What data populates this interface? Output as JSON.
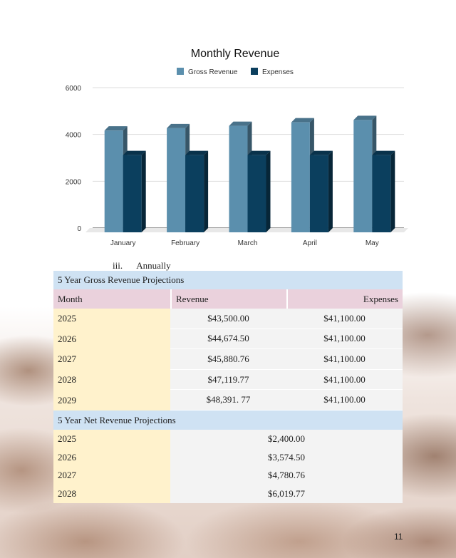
{
  "chart_data": {
    "type": "bar",
    "title": "Monthly Revenue",
    "categories": [
      "January",
      "February",
      "March",
      "April",
      "May"
    ],
    "series": [
      {
        "name": "Gross Revenue",
        "values": [
          4350,
          4450,
          4550,
          4700,
          4800
        ],
        "color": "#5b8fad"
      },
      {
        "name": "Expenses",
        "values": [
          3300,
          3300,
          3300,
          3300,
          3300
        ],
        "color": "#0b3f5e"
      }
    ],
    "yticks": [
      "0",
      "2000",
      "4000",
      "6000"
    ],
    "ylim": [
      0,
      6000
    ],
    "legend": "top",
    "grid": true,
    "style": "3d"
  },
  "section_label": {
    "numeral": "iii.",
    "text": "Annually"
  },
  "gross_table": {
    "title": "5 Year Gross Revenue Projections",
    "headers": [
      "Month",
      "Revenue",
      "Expenses"
    ],
    "rows": [
      [
        "2025",
        "$43,500.00",
        "$41,100.00"
      ],
      [
        "2026",
        "$44,674.50",
        "$41,100.00"
      ],
      [
        "2027",
        "$45,880.76",
        "$41,100.00"
      ],
      [
        "2028",
        "$47,119.77",
        "$41,100.00"
      ],
      [
        "2029",
        "$48,391. 77",
        "$41,100.00"
      ]
    ]
  },
  "net_table": {
    "title": "5 Year Net Revenue Projections",
    "rows": [
      [
        "2025",
        "$2,400.00"
      ],
      [
        "2026",
        "$3,574.50"
      ],
      [
        "2027",
        "$4,780.76"
      ],
      [
        "2028",
        "$6,019.77"
      ]
    ]
  },
  "page_number": "11"
}
